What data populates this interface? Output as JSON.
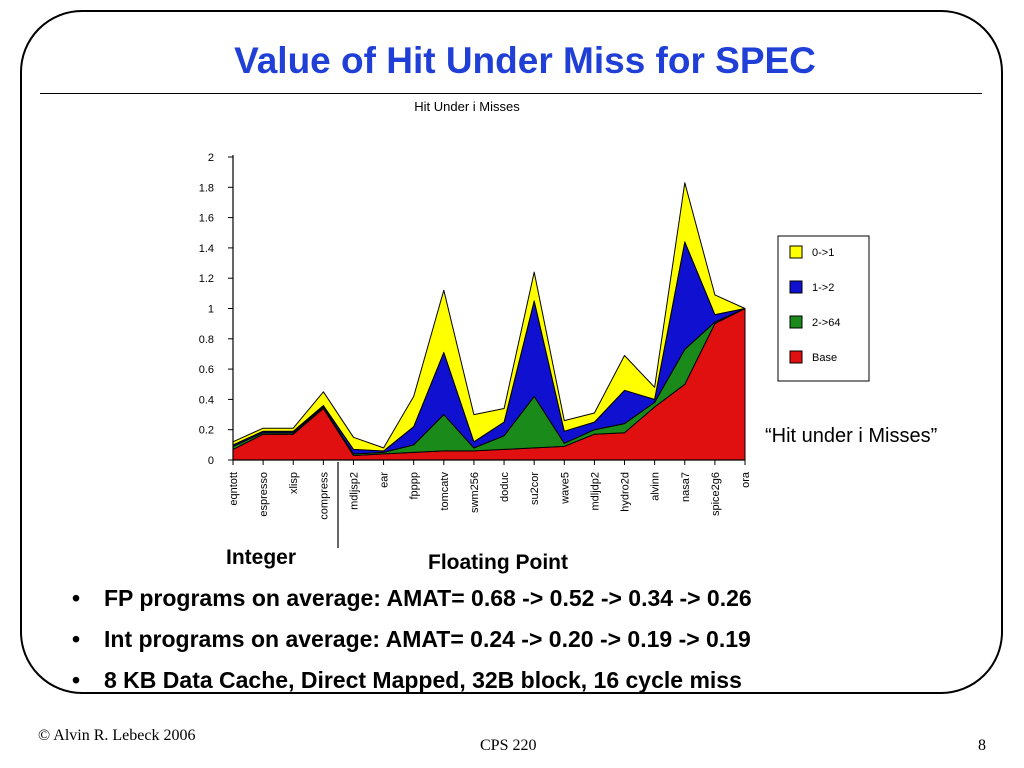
{
  "slide": {
    "title": "Value of Hit Under Miss for SPEC",
    "note": "“Hit under i Misses”",
    "group_integer": "Integer",
    "group_fp": "Floating Point",
    "bullets": [
      "FP programs on average: AMAT= 0.68 -> 0.52 -> 0.34 -> 0.26",
      "Int programs on average: AMAT= 0.24 -> 0.20 -> 0.19 -> 0.19",
      "8 KB Data Cache, Direct Mapped, 32B block, 16 cycle miss"
    ],
    "bullet_glyph": "•",
    "footer_left": "© Alvin R. Lebeck 2006",
    "footer_center": "CPS 220",
    "footer_right": "8"
  },
  "chart_data": {
    "type": "area",
    "stacked": true,
    "title": "Hit Under i Misses",
    "categories": [
      "eqntott",
      "espresso",
      "xlisp",
      "compress",
      "mdljsp2",
      "ear",
      "fpppp",
      "tomcatv",
      "swm256",
      "doduc",
      "su2cor",
      "wave5",
      "mdljdp2",
      "hydro2d",
      "alvinn",
      "nasa7",
      "spice2g6",
      "ora"
    ],
    "ylim": [
      0,
      2
    ],
    "yticks": [
      "0",
      "0.2",
      "0.4",
      "0.6",
      "0.8",
      "1",
      "1.2",
      "1.4",
      "1.6",
      "1.8",
      "2"
    ],
    "legend_position": "right",
    "series": [
      {
        "name": "Base",
        "color": "#e01010",
        "values": [
          0.07,
          0.17,
          0.17,
          0.34,
          0.03,
          0.04,
          0.05,
          0.06,
          0.06,
          0.07,
          0.08,
          0.09,
          0.17,
          0.18,
          0.35,
          0.5,
          0.9,
          1.0
        ]
      },
      {
        "name": "2->64",
        "color": "#1a8a1a",
        "values": [
          0.02,
          0.01,
          0.01,
          0.01,
          0.01,
          0.01,
          0.05,
          0.24,
          0.02,
          0.09,
          0.34,
          0.02,
          0.03,
          0.06,
          0.03,
          0.23,
          0.01,
          0.0
        ]
      },
      {
        "name": "1->2",
        "color": "#1010d0",
        "values": [
          0.01,
          0.01,
          0.01,
          0.01,
          0.03,
          0.01,
          0.12,
          0.41,
          0.04,
          0.09,
          0.63,
          0.08,
          0.05,
          0.22,
          0.02,
          0.71,
          0.05,
          0.0
        ]
      },
      {
        "name": "0->1",
        "color": "#ffff00",
        "values": [
          0.02,
          0.02,
          0.02,
          0.09,
          0.08,
          0.02,
          0.2,
          0.41,
          0.18,
          0.09,
          0.19,
          0.07,
          0.06,
          0.23,
          0.08,
          0.39,
          0.13,
          0.0
        ]
      }
    ],
    "legend_order": [
      "0->1",
      "1->2",
      "2->64",
      "Base"
    ]
  }
}
